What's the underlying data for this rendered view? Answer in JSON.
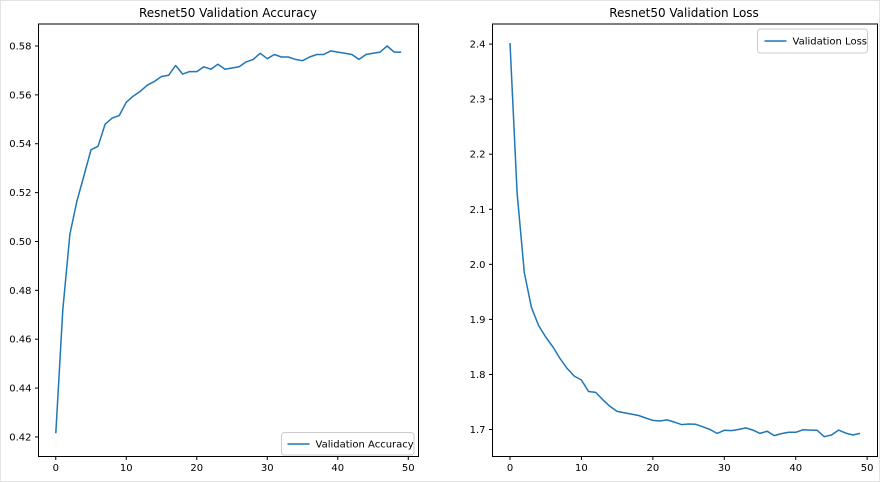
{
  "figure": {
    "background_color": "#ffffff",
    "line_color": "#1f77b4",
    "text_color": "#000000",
    "legend_edge_color": "#cccccc"
  },
  "chart_data": [
    {
      "type": "line",
      "title": "Resnet50 Validation Accuracy",
      "xlabel": "",
      "ylabel": "",
      "grid": false,
      "legend_position": "lower right",
      "xlim": [
        -2.45,
        51.45
      ],
      "ylim": [
        0.412,
        0.589
      ],
      "xticks": [
        0,
        10,
        20,
        30,
        40,
        50
      ],
      "xtick_labels": [
        "0",
        "10",
        "20",
        "30",
        "40",
        "50"
      ],
      "yticks": [
        0.42,
        0.44,
        0.46,
        0.48,
        0.5,
        0.52,
        0.54,
        0.56,
        0.58
      ],
      "ytick_labels": [
        "0.42",
        "0.44",
        "0.46",
        "0.48",
        "0.50",
        "0.52",
        "0.54",
        "0.56",
        "0.58"
      ],
      "x": [
        0,
        1,
        2,
        3,
        4,
        5,
        6,
        7,
        8,
        9,
        10,
        11,
        12,
        13,
        14,
        15,
        16,
        17,
        18,
        19,
        20,
        21,
        22,
        23,
        24,
        25,
        26,
        27,
        28,
        29,
        30,
        31,
        32,
        33,
        34,
        35,
        36,
        37,
        38,
        39,
        40,
        41,
        42,
        43,
        44,
        45,
        46,
        47,
        48,
        49
      ],
      "series": [
        {
          "name": "Validation Accuracy",
          "values": [
            0.4215,
            0.472,
            0.503,
            0.5165,
            0.527,
            0.5375,
            0.539,
            0.548,
            0.5505,
            0.5515,
            0.557,
            0.5595,
            0.5615,
            0.564,
            0.5655,
            0.5675,
            0.568,
            0.572,
            0.5685,
            0.5695,
            0.5695,
            0.5715,
            0.5705,
            0.5725,
            0.5705,
            0.571,
            0.5715,
            0.5735,
            0.5745,
            0.577,
            0.5748,
            0.5765,
            0.5755,
            0.5755,
            0.5745,
            0.574,
            0.5755,
            0.5765,
            0.5765,
            0.578,
            0.5775,
            0.577,
            0.5765,
            0.5745,
            0.5765,
            0.577,
            0.5775,
            0.58,
            0.5775,
            0.5775
          ]
        }
      ]
    },
    {
      "type": "line",
      "title": "Resnet50 Validation Loss",
      "xlabel": "",
      "ylabel": "",
      "grid": false,
      "legend_position": "upper right",
      "xlim": [
        -2.45,
        51.45
      ],
      "ylim": [
        1.651,
        2.4365
      ],
      "xticks": [
        0,
        10,
        20,
        30,
        40,
        50
      ],
      "xtick_labels": [
        "0",
        "10",
        "20",
        "30",
        "40",
        "50"
      ],
      "yticks": [
        1.7,
        1.8,
        1.9,
        2.0,
        2.1,
        2.2,
        2.3,
        2.4
      ],
      "ytick_labels": [
        "1.7",
        "1.8",
        "1.9",
        "2.0",
        "2.1",
        "2.2",
        "2.3",
        "2.4"
      ],
      "x": [
        0,
        1,
        2,
        3,
        4,
        5,
        6,
        7,
        8,
        9,
        10,
        11,
        12,
        13,
        14,
        15,
        16,
        17,
        18,
        19,
        20,
        21,
        22,
        23,
        24,
        25,
        26,
        27,
        28,
        29,
        30,
        31,
        32,
        33,
        34,
        35,
        36,
        37,
        38,
        39,
        40,
        41,
        42,
        43,
        44,
        45,
        46,
        47,
        48,
        49
      ],
      "series": [
        {
          "name": "Validation Loss",
          "values": [
            2.402,
            2.13,
            1.985,
            1.922,
            1.889,
            1.868,
            1.85,
            1.829,
            1.811,
            1.797,
            1.79,
            1.769,
            1.7675,
            1.754,
            1.742,
            1.733,
            1.7305,
            1.728,
            1.7255,
            1.721,
            1.7165,
            1.7155,
            1.7175,
            1.7135,
            1.709,
            1.71,
            1.7095,
            1.705,
            1.7,
            1.693,
            1.6985,
            1.698,
            1.7,
            1.703,
            1.699,
            1.693,
            1.697,
            1.689,
            1.6925,
            1.695,
            1.695,
            1.6995,
            1.699,
            1.6985,
            1.687,
            1.69,
            1.699,
            1.6935,
            1.69,
            1.693
          ]
        }
      ]
    }
  ]
}
